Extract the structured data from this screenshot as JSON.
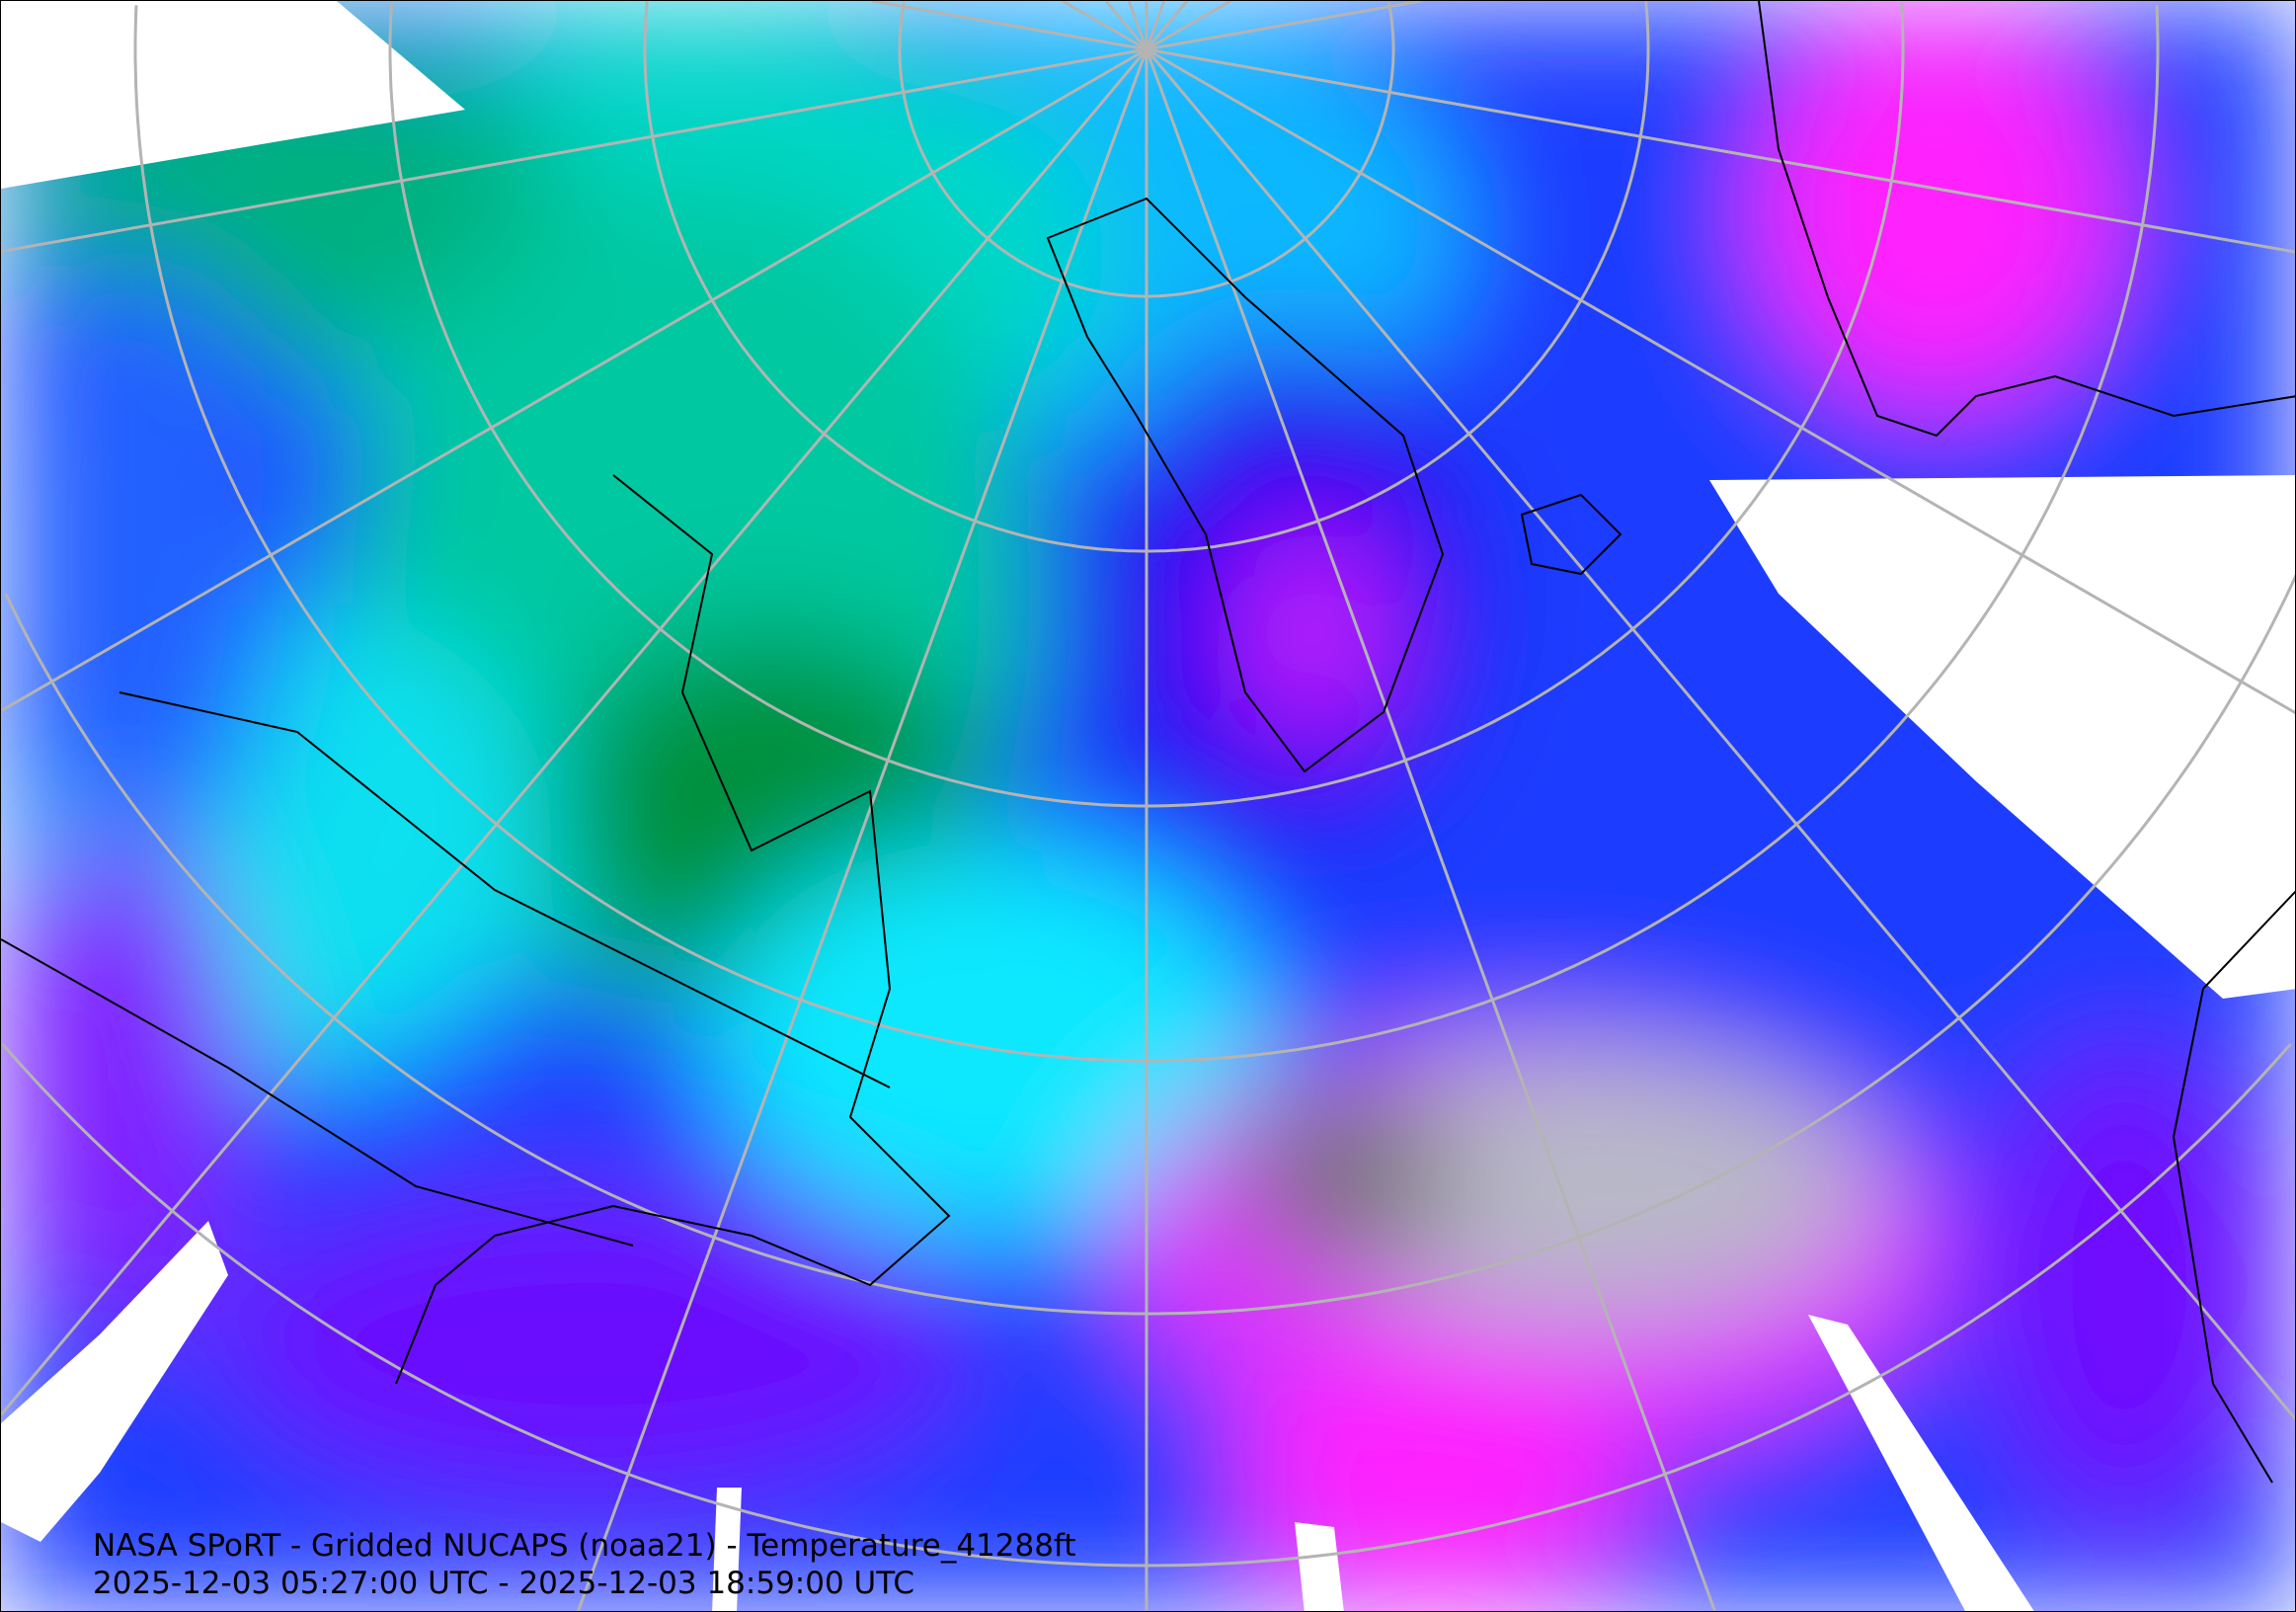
{
  "title": "NASA SPoRT - Gridded NUCAPS (noaa21) - Temperature_41288ft",
  "time_range": "2025-12-03 05:27:00 UTC - 2025-12-03 18:59:00 UTC",
  "colors": {
    "cold_green": "#008a3a",
    "cyan": "#00e8e8",
    "blue": "#0a2cff",
    "violet": "#7a10ff",
    "magenta": "#ff10ff",
    "warm_gray": "#b0b0b0",
    "dark_gray": "#606060",
    "no_data": "#ffffff",
    "graticule": "#b4b4b4",
    "borders": "#000000"
  }
}
